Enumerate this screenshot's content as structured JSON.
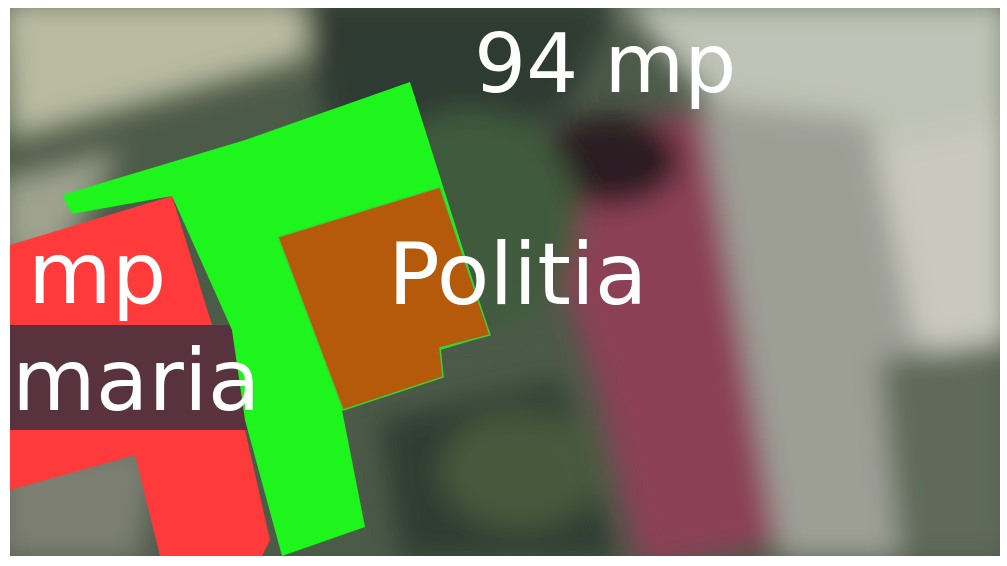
{
  "labels": {
    "area_top": "94 mp",
    "area_left": "mp",
    "name_left": "maria",
    "name_center": "Politia"
  }
}
